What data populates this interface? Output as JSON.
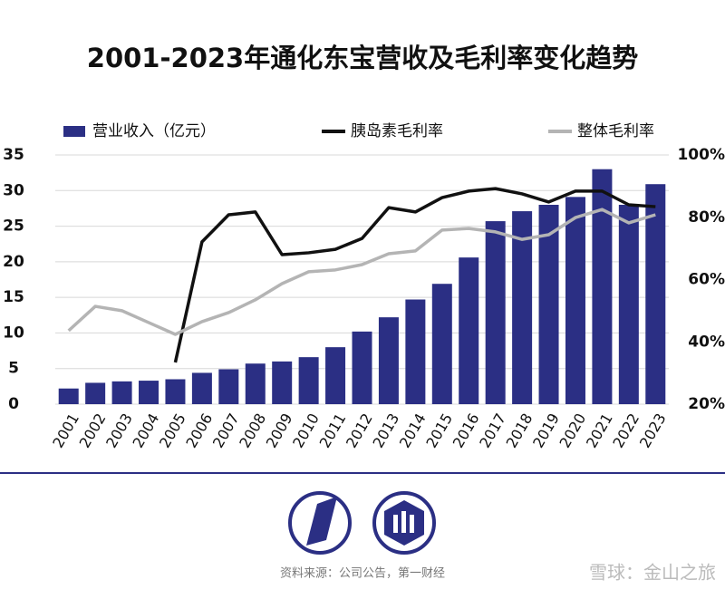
{
  "chart_data": {
    "type": "bar_line",
    "title": "2001-2023年通化东宝营收及毛利率变化趋势",
    "categories": [
      "2001",
      "2002",
      "2003",
      "2004",
      "2005",
      "2006",
      "2007",
      "2008",
      "2009",
      "2010",
      "2011",
      "2012",
      "2013",
      "2014",
      "2015",
      "2016",
      "2017",
      "2018",
      "2019",
      "2020",
      "2021",
      "2022",
      "2023"
    ],
    "series": [
      {
        "name": "营业收入（亿元）",
        "type": "bar",
        "color": "#2b2f84",
        "values": [
          2.2,
          3.0,
          3.2,
          3.3,
          3.5,
          4.4,
          4.9,
          5.7,
          6.0,
          6.6,
          8.0,
          10.2,
          12.2,
          14.7,
          16.9,
          20.6,
          25.7,
          27.1,
          28.0,
          29.1,
          33.0,
          28.0,
          30.9
        ]
      },
      {
        "name": "胰岛素毛利率",
        "type": "line",
        "axis": "y2",
        "color": "#111111",
        "values": [
          null,
          null,
          null,
          null,
          33.4,
          72.1,
          80.8,
          81.7,
          68.0,
          68.6,
          69.7,
          73.2,
          83.1,
          81.7,
          86.3,
          88.4,
          89.2,
          87.5,
          84.9,
          88.4,
          88.4,
          84.0,
          83.4
        ]
      },
      {
        "name": "整体毛利率",
        "type": "line",
        "axis": "y2",
        "color": "#b4b4b4",
        "values": [
          43.6,
          51.4,
          50.0,
          46.2,
          42.4,
          46.5,
          49.4,
          53.5,
          58.7,
          62.5,
          63.1,
          64.8,
          68.3,
          69.2,
          75.9,
          76.4,
          75.3,
          72.9,
          74.4,
          79.9,
          82.5,
          78.2,
          80.8
        ]
      }
    ],
    "ylim": [
      0,
      35
    ],
    "yticks": [
      0,
      5,
      10,
      15,
      20,
      25,
      30,
      35
    ],
    "y2lim": [
      20,
      100
    ],
    "y2ticks": [
      {
        "value": 20,
        "label": "20%"
      },
      {
        "value": 40,
        "label": "40%"
      },
      {
        "value": 60,
        "label": "60%"
      },
      {
        "value": 80,
        "label": "80%"
      },
      {
        "value": 100,
        "label": "100%"
      }
    ],
    "grid": true
  },
  "footer": {
    "source": "资料来源：公司公告，第一财经",
    "watermark": "雪球：金山之旅"
  }
}
